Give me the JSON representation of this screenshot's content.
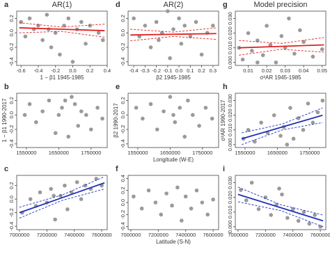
{
  "chart_data": [
    {
      "type": "scatter",
      "label": "a",
      "title": "AR(1)",
      "xlabel": "1 − β1 1945-1985",
      "x": [
        -0.6,
        -0.55,
        -0.5,
        -0.45,
        -0.4,
        -0.35,
        -0.3,
        -0.25,
        -0.2,
        -0.15,
        -0.1,
        -0.05,
        0.0,
        0.05,
        0.1,
        0.15,
        0.2,
        0.3,
        0.35,
        -0.28
      ],
      "values": [
        0.15,
        -0.05,
        0.2,
        0.05,
        0.1,
        -0.1,
        0.25,
        -0.2,
        0.0,
        -0.3,
        0.1,
        0.2,
        -0.4,
        0.05,
        0.15,
        -0.15,
        0.1,
        0.0,
        -0.1,
        0.05
      ],
      "xlim": [
        -0.65,
        0.4
      ],
      "ylim": [
        -0.45,
        0.3
      ],
      "xticks": [
        -0.6,
        -0.4,
        -0.2,
        {
          "value": 0,
          "label": "0.0"
        },
        0.2,
        0.4
      ],
      "yticks": [
        -0.4,
        -0.2,
        {
          "value": 0,
          "label": "0.0"
        },
        0.2
      ],
      "fit": {
        "color": "#e02020",
        "x": [
          -0.62,
          -0.13,
          0.37
        ],
        "values": [
          0.07,
          0.05,
          0.03
        ],
        "upper": [
          0.14,
          0.08,
          0.12
        ],
        "lower": [
          0.0,
          0.02,
          -0.06
        ]
      }
    },
    {
      "type": "scatter",
      "label": "d",
      "title": "AR(2)",
      "xlabel": "β2 1945-1985",
      "x": [
        -0.4,
        -0.35,
        -0.3,
        -0.25,
        -0.2,
        -0.15,
        -0.1,
        -0.08,
        -0.05,
        0.0,
        0.02,
        0.05,
        0.1,
        0.15,
        0.2,
        0.25,
        0.3,
        -0.18
      ],
      "values": [
        0.2,
        -0.05,
        0.1,
        -0.2,
        0.15,
        0.0,
        0.3,
        -0.35,
        0.05,
        0.2,
        -0.15,
        0.1,
        -0.05,
        0.15,
        -0.3,
        0.0,
        0.1,
        -0.1
      ],
      "xlim": [
        -0.45,
        0.35
      ],
      "ylim": [
        -0.45,
        0.3
      ],
      "xticks": [
        -0.4,
        -0.3,
        -0.2,
        -0.1,
        {
          "value": 0,
          "label": "0.0"
        },
        0.1,
        0.2,
        0.3
      ],
      "yticks": [
        -0.4,
        -0.2,
        {
          "value": 0,
          "label": "0.0"
        },
        0.2
      ],
      "fit": {
        "color": "#e02020",
        "x": [
          -0.43,
          -0.05,
          0.33
        ],
        "values": [
          -0.03,
          -0.02,
          -0.01
        ],
        "upper": [
          0.05,
          0.01,
          0.07
        ],
        "lower": [
          -0.11,
          -0.05,
          -0.09
        ]
      }
    },
    {
      "type": "scatter",
      "label": "g",
      "title": "Model precision",
      "xlabel": "σ²AR 1945-1985",
      "x": [
        0.005,
        0.007,
        0.01,
        0.012,
        0.015,
        0.018,
        0.02,
        0.022,
        0.025,
        0.028,
        0.03,
        0.032,
        0.035,
        0.038,
        0.04,
        0.045,
        0.05,
        0.015
      ],
      "values": [
        0.01,
        0.002,
        0.02,
        0.008,
        0.015,
        0.005,
        0.025,
        0.012,
        0.0,
        0.018,
        0.01,
        0.03,
        0.006,
        0.022,
        0.014,
        0.004,
        0.009,
        0.0
      ],
      "xlim": [
        0.003,
        0.052
      ],
      "ylim": [
        -0.002,
        0.035
      ],
      "xticks": [
        0.01,
        0.02,
        0.03,
        0.04,
        0.05
      ],
      "yticks": [
        {
          "value": 0,
          "label": "0.000"
        },
        {
          "value": 0.01,
          "label": "0.010"
        },
        {
          "value": 0.02,
          "label": "0.020"
        },
        {
          "value": 0.03,
          "label": "0.030"
        }
      ],
      "fit": {
        "color": "#e02020",
        "x": [
          0.005,
          0.028,
          0.051
        ],
        "values": [
          0.01,
          0.011,
          0.012
        ],
        "upper": [
          0.015,
          0.013,
          0.017
        ],
        "lower": [
          0.005,
          0.009,
          0.007
        ]
      }
    },
    {
      "type": "scatter",
      "label": "b",
      "ylabel": "1 − β1 1990-2017",
      "x": [
        1545000,
        1560000,
        1580000,
        1600000,
        1620000,
        1640000,
        1660000,
        1670000,
        1680000,
        1690000,
        1700000,
        1710000,
        1720000,
        1735000,
        1750000,
        1770000,
        1785000,
        1650000
      ],
      "values": [
        0.0,
        0.15,
        -0.1,
        0.05,
        0.2,
        -0.25,
        0.1,
        0.2,
        -0.3,
        0.25,
        0.15,
        -0.15,
        0.05,
        0.0,
        -0.2,
        0.1,
        -0.05,
        0.0
      ],
      "xlim": [
        1520000,
        1800000
      ],
      "ylim": [
        -0.45,
        0.3
      ],
      "xticks": [
        1550000,
        1650000,
        1750000
      ],
      "yticks": [
        -0.4,
        -0.2,
        {
          "value": 0,
          "label": "0.0"
        },
        0.2
      ]
    },
    {
      "type": "scatter",
      "label": "e",
      "xlabel": "Longitude (W-E)",
      "ylabel": "β2 1990-2017",
      "x": [
        1545000,
        1565000,
        1590000,
        1610000,
        1630000,
        1650000,
        1665000,
        1680000,
        1695000,
        1705000,
        1720000,
        1740000,
        1760000,
        1780000,
        1660000
      ],
      "values": [
        0.1,
        -0.05,
        0.15,
        -0.2,
        0.05,
        0.25,
        -0.1,
        0.1,
        -0.3,
        0.2,
        0.0,
        -0.15,
        0.1,
        -0.05,
        0.0
      ],
      "xlim": [
        1520000,
        1800000
      ],
      "ylim": [
        -0.45,
        0.3
      ],
      "xticks": [
        1550000,
        1650000,
        1750000
      ],
      "yticks": [
        -0.4,
        -0.2,
        {
          "value": 0,
          "label": "0.0"
        },
        0.2
      ]
    },
    {
      "type": "scatter",
      "label": "h",
      "ylabel": "σ²AR 1990-2017",
      "x": [
        1545000,
        1560000,
        1580000,
        1600000,
        1620000,
        1640000,
        1660000,
        1670000,
        1690000,
        1700000,
        1715000,
        1730000,
        1745000,
        1760000,
        1775000,
        1790000,
        1680000
      ],
      "values": [
        0.004,
        0.01,
        0.002,
        0.015,
        0.008,
        0.02,
        0.006,
        0.012,
        0.025,
        0.004,
        0.018,
        0.01,
        0.028,
        0.015,
        0.022,
        0.03,
        0.0
      ],
      "xlim": [
        1520000,
        1800000
      ],
      "ylim": [
        -0.002,
        0.035
      ],
      "xticks": [
        1550000,
        1650000,
        1750000
      ],
      "yticks": [
        {
          "value": 0,
          "label": "0.000"
        },
        {
          "value": 0.01,
          "label": "0.010"
        },
        {
          "value": 0.02,
          "label": "0.020"
        },
        {
          "value": 0.03,
          "label": "0.030"
        }
      ],
      "fit": {
        "color": "#1f2fb8",
        "x": [
          1540000,
          1665000,
          1790000
        ],
        "values": [
          0.004,
          0.012,
          0.02
        ],
        "upper": [
          0.008,
          0.014,
          0.025
        ],
        "lower": [
          0.0,
          0.01,
          0.015
        ]
      }
    },
    {
      "type": "scatter",
      "label": "c",
      "x": [
        7020000,
        7080000,
        7120000,
        7150000,
        7200000,
        7230000,
        7260000,
        7300000,
        7330000,
        7350000,
        7380000,
        7420000,
        7450000,
        7480000,
        7520000,
        7560000,
        7600000,
        7250000
      ],
      "values": [
        -0.2,
        0.0,
        -0.1,
        0.1,
        -0.05,
        0.15,
        -0.3,
        0.05,
        0.2,
        -0.15,
        0.1,
        0.25,
        0.0,
        0.2,
        0.15,
        0.3,
        0.2,
        0.05
      ],
      "xlim": [
        6980000,
        7640000
      ],
      "ylim": [
        -0.45,
        0.35
      ],
      "xticks": [
        7000000,
        7200000,
        7400000,
        7600000
      ],
      "yticks": [
        -0.4,
        -0.2,
        {
          "value": 0,
          "label": "0.0"
        },
        0.2
      ],
      "fit": {
        "color": "#1f2fb8",
        "x": [
          7000000,
          7310000,
          7620000
        ],
        "values": [
          -0.2,
          0.02,
          0.24
        ],
        "upper": [
          -0.12,
          0.06,
          0.33
        ],
        "lower": [
          -0.28,
          -0.02,
          0.15
        ]
      }
    },
    {
      "type": "scatter",
      "label": "f",
      "xlabel": "Latitude (S-N)",
      "x": [
        7020000,
        7080000,
        7130000,
        7180000,
        7220000,
        7260000,
        7300000,
        7340000,
        7370000,
        7400000,
        7440000,
        7480000,
        7520000,
        7560000,
        7600000
      ],
      "values": [
        0.1,
        -0.1,
        0.2,
        0.0,
        -0.2,
        0.15,
        -0.05,
        0.25,
        -0.3,
        0.1,
        -0.1,
        0.2,
        0.0,
        -0.2,
        0.05
      ],
      "xlim": [
        6980000,
        7640000
      ],
      "ylim": [
        -0.45,
        0.45
      ],
      "xticks": [
        7000000,
        7200000,
        7400000,
        7600000
      ],
      "yticks": [
        -0.4,
        -0.2,
        {
          "value": 0,
          "label": "0.0"
        },
        0.2,
        0.4
      ]
    },
    {
      "type": "scatter",
      "label": "i",
      "x": [
        7020000,
        7060000,
        7100000,
        7150000,
        7200000,
        7240000,
        7280000,
        7320000,
        7360000,
        7400000,
        7440000,
        7480000,
        7520000,
        7560000,
        7600000,
        7300000
      ],
      "values": [
        0.025,
        0.018,
        0.03,
        0.012,
        0.02,
        0.008,
        0.015,
        0.022,
        0.006,
        0.012,
        0.004,
        0.01,
        0.002,
        0.008,
        0.0,
        0.026
      ],
      "xlim": [
        6980000,
        7640000
      ],
      "ylim": [
        -0.002,
        0.035
      ],
      "xticks": [
        7000000,
        7200000,
        7400000,
        7600000
      ],
      "yticks": [
        {
          "value": 0,
          "label": "0.000"
        },
        {
          "value": 0.01,
          "label": "0.010"
        },
        {
          "value": 0.02,
          "label": "0.020"
        },
        {
          "value": 0.03,
          "label": "0.030"
        }
      ],
      "fit": {
        "color": "#1f2fb8",
        "x": [
          7000000,
          7310000,
          7620000
        ],
        "values": [
          0.022,
          0.013,
          0.004
        ],
        "upper": [
          0.027,
          0.015,
          0.008
        ],
        "lower": [
          0.017,
          0.011,
          0.0
        ]
      }
    }
  ]
}
